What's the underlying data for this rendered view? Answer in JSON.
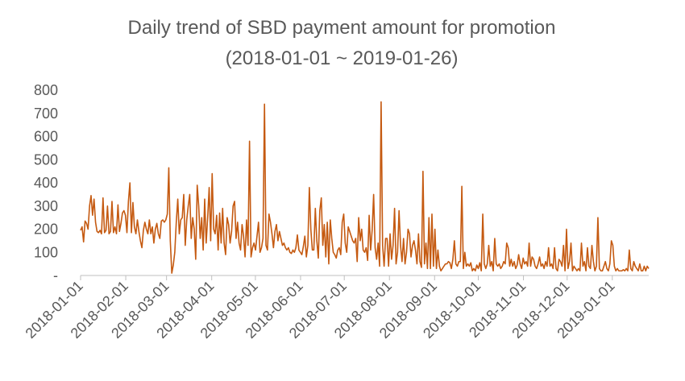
{
  "chart_data": {
    "type": "line",
    "title": "Daily trend of SBD payment amount for promotion",
    "subtitle": "(2018-01-01 ~ 2019-01-26)",
    "xlabel": "",
    "ylabel": "",
    "ylim": [
      0,
      800
    ],
    "y_ticks": [
      0,
      100,
      200,
      300,
      400,
      500,
      600,
      700,
      800
    ],
    "y_tick_labels": [
      "-",
      "100",
      "200",
      "300",
      "400",
      "500",
      "600",
      "700",
      "800"
    ],
    "x_tick_labels": [
      "2018-01-01",
      "2018-02-01",
      "2018-03-01",
      "2018-04-01",
      "2018-05-01",
      "2018-06-01",
      "2018-07-01",
      "2018-08-01",
      "2018-09-01",
      "2018-10-01",
      "2018-11-01",
      "2018-12-01",
      "2019-01-01"
    ],
    "x_range": [
      "2018-01-01",
      "2019-01-26"
    ],
    "grid": false,
    "legend": "none",
    "series_color": "#C55A11",
    "series": [
      {
        "values": [
          195,
          210,
          145,
          235,
          225,
          200,
          300,
          345,
          260,
          330,
          230,
          190,
          185,
          195,
          180,
          335,
          185,
          195,
          300,
          180,
          190,
          320,
          185,
          210,
          180,
          305,
          190,
          225,
          270,
          280,
          260,
          185,
          320,
          400,
          185,
          315,
          210,
          180,
          240,
          190,
          150,
          120,
          195,
          230,
          200,
          180,
          240,
          180,
          210,
          140,
          200,
          225,
          180,
          160,
          235,
          240,
          230,
          240,
          265,
          465,
          150,
          10,
          45,
          100,
          230,
          330,
          180,
          240,
          250,
          350,
          130,
          240,
          300,
          350,
          160,
          250,
          200,
          70,
          390,
          300,
          160,
          250,
          110,
          330,
          140,
          250,
          380,
          150,
          440,
          200,
          180,
          260,
          110,
          270,
          140,
          290,
          140,
          90,
          250,
          220,
          140,
          190,
          300,
          320,
          160,
          230,
          140,
          110,
          220,
          170,
          80,
          240,
          130,
          580,
          80,
          120,
          140,
          110,
          170,
          230,
          100,
          120,
          160,
          740,
          130,
          110,
          265,
          230,
          180,
          120,
          190,
          220,
          150,
          190,
          160,
          130,
          140,
          120,
          110,
          120,
          100,
          95,
          110,
          100,
          120,
          175,
          110,
          100,
          90,
          125,
          170,
          80,
          130,
          380,
          200,
          110,
          110,
          290,
          150,
          75,
          280,
          335,
          130,
          220,
          80,
          230,
          50,
          240,
          160,
          100,
          90,
          75,
          110,
          120,
          90,
          230,
          265,
          140,
          100,
          210,
          190,
          170,
          150,
          140,
          160,
          60,
          250,
          150,
          200,
          110,
          100,
          120,
          65,
          260,
          110,
          195,
          350,
          120,
          70,
          140,
          40,
          750,
          130,
          40,
          160,
          160,
          40,
          180,
          70,
          130,
          290,
          50,
          100,
          280,
          130,
          60,
          160,
          50,
          100,
          200,
          180,
          80,
          130,
          150,
          110,
          50,
          180,
          60,
          35,
          450,
          50,
          140,
          30,
          250,
          30,
          265,
          40,
          200,
          30,
          110,
          40,
          20,
          30,
          40,
          50,
          50,
          60,
          55,
          30,
          70,
          150,
          50,
          40,
          60,
          60,
          385,
          30,
          100,
          40,
          50,
          40,
          55,
          20,
          30,
          20,
          45,
          30,
          55,
          20,
          265,
          50,
          30,
          50,
          130,
          40,
          60,
          20,
          160,
          50,
          40,
          50,
          30,
          40,
          60,
          50,
          140,
          120,
          40,
          70,
          40,
          60,
          30,
          45,
          90,
          50,
          30,
          75,
          50,
          60,
          40,
          140,
          40,
          80,
          70,
          40,
          30,
          50,
          80,
          40,
          50,
          30,
          60,
          40,
          120,
          40,
          50,
          30,
          120,
          30,
          20,
          70,
          60,
          40,
          130,
          20,
          200,
          30,
          60,
          140,
          20,
          40,
          30,
          20,
          30,
          20,
          140,
          40,
          60,
          20,
          120,
          40,
          30,
          130,
          60,
          20,
          40,
          250,
          30,
          20,
          20,
          40,
          60,
          30,
          20,
          50,
          150,
          130,
          40,
          20,
          30,
          20,
          20,
          20,
          25,
          20,
          30,
          20,
          110,
          30,
          20,
          60,
          40,
          30,
          20,
          50,
          20,
          20,
          40,
          20,
          40,
          30
        ]
      }
    ]
  }
}
